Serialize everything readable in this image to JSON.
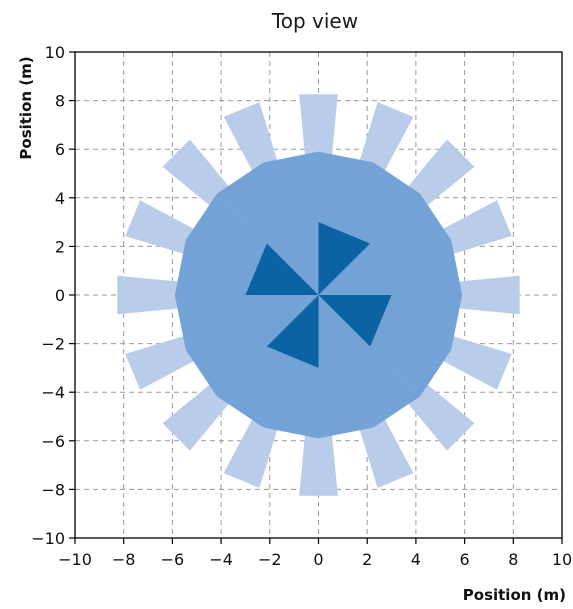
{
  "chart_data": {
    "type": "polar-rose",
    "title": "Top view",
    "xlabel": "Position (m)",
    "ylabel": "Position (m)",
    "xlim": [
      -10,
      10
    ],
    "ylim": [
      -10,
      10
    ],
    "xticks": [
      -10,
      -8,
      -6,
      -4,
      -2,
      0,
      2,
      4,
      6,
      8,
      10
    ],
    "yticks": [
      -10,
      -8,
      -6,
      -4,
      -2,
      0,
      2,
      4,
      6,
      8,
      10
    ],
    "grid": true,
    "colors": {
      "light": "#b9cdeb",
      "medium": "#73a2d6",
      "dark": "#0b63a3"
    },
    "rings": [
      {
        "name": "outer",
        "color_key": "light",
        "wedges": [
          {
            "angle_deg": 90,
            "radius": 8.3,
            "half_width_deg": 5.5
          },
          {
            "angle_deg": 67.5,
            "radius": 8.3,
            "half_width_deg": 5.5
          },
          {
            "angle_deg": 45,
            "radius": 8.3,
            "half_width_deg": 5.5
          },
          {
            "angle_deg": 22.5,
            "radius": 8.3,
            "half_width_deg": 5.5
          },
          {
            "angle_deg": 0,
            "radius": 8.3,
            "half_width_deg": 5.5
          },
          {
            "angle_deg": -22.5,
            "radius": 8.3,
            "half_width_deg": 5.5
          },
          {
            "angle_deg": -45,
            "radius": 8.3,
            "half_width_deg": 5.5
          },
          {
            "angle_deg": -67.5,
            "radius": 8.3,
            "half_width_deg": 5.5
          },
          {
            "angle_deg": -90,
            "radius": 8.3,
            "half_width_deg": 5.5
          },
          {
            "angle_deg": -112.5,
            "radius": 8.3,
            "half_width_deg": 5.5
          },
          {
            "angle_deg": -135,
            "radius": 8.3,
            "half_width_deg": 5.5
          },
          {
            "angle_deg": -157.5,
            "radius": 8.3,
            "half_width_deg": 5.5
          },
          {
            "angle_deg": 180,
            "radius": 8.3,
            "half_width_deg": 5.5
          },
          {
            "angle_deg": 157.5,
            "radius": 8.3,
            "half_width_deg": 5.5
          },
          {
            "angle_deg": 135,
            "radius": 8.3,
            "half_width_deg": 5.5
          },
          {
            "angle_deg": 112.5,
            "radius": 8.3,
            "half_width_deg": 5.5
          }
        ]
      },
      {
        "name": "middle",
        "color_key": "medium",
        "wedges": [
          {
            "angle_deg": 78.75,
            "radius": 5.9,
            "half_width_deg": 11.25
          },
          {
            "angle_deg": 56.25,
            "radius": 5.9,
            "half_width_deg": 11.25
          },
          {
            "angle_deg": 33.75,
            "radius": 5.9,
            "half_width_deg": 11.25
          },
          {
            "angle_deg": 11.25,
            "radius": 5.9,
            "half_width_deg": 11.25
          },
          {
            "angle_deg": -11.25,
            "radius": 5.9,
            "half_width_deg": 11.25
          },
          {
            "angle_deg": -33.75,
            "radius": 5.9,
            "half_width_deg": 11.25
          },
          {
            "angle_deg": -56.25,
            "radius": 5.9,
            "half_width_deg": 11.25
          },
          {
            "angle_deg": -78.75,
            "radius": 5.9,
            "half_width_deg": 11.25
          },
          {
            "angle_deg": -101.25,
            "radius": 5.9,
            "half_width_deg": 11.25
          },
          {
            "angle_deg": -123.75,
            "radius": 5.9,
            "half_width_deg": 11.25
          },
          {
            "angle_deg": -146.25,
            "radius": 5.9,
            "half_width_deg": 11.25
          },
          {
            "angle_deg": -168.75,
            "radius": 5.9,
            "half_width_deg": 11.25
          },
          {
            "angle_deg": 168.75,
            "radius": 5.9,
            "half_width_deg": 11.25
          },
          {
            "angle_deg": 146.25,
            "radius": 5.9,
            "half_width_deg": 11.25
          },
          {
            "angle_deg": 123.75,
            "radius": 5.9,
            "half_width_deg": 11.25
          },
          {
            "angle_deg": 101.25,
            "radius": 5.9,
            "half_width_deg": 11.25
          }
        ]
      },
      {
        "name": "inner",
        "color_key": "dark",
        "wedges": [
          {
            "angle_deg": 67.5,
            "radius": 3.0,
            "half_width_deg": 22.5
          },
          {
            "angle_deg": -22.5,
            "radius": 3.0,
            "half_width_deg": 22.5
          },
          {
            "angle_deg": -112.5,
            "radius": 3.0,
            "half_width_deg": 22.5
          },
          {
            "angle_deg": 157.5,
            "radius": 3.0,
            "half_width_deg": 22.5
          }
        ]
      }
    ]
  }
}
